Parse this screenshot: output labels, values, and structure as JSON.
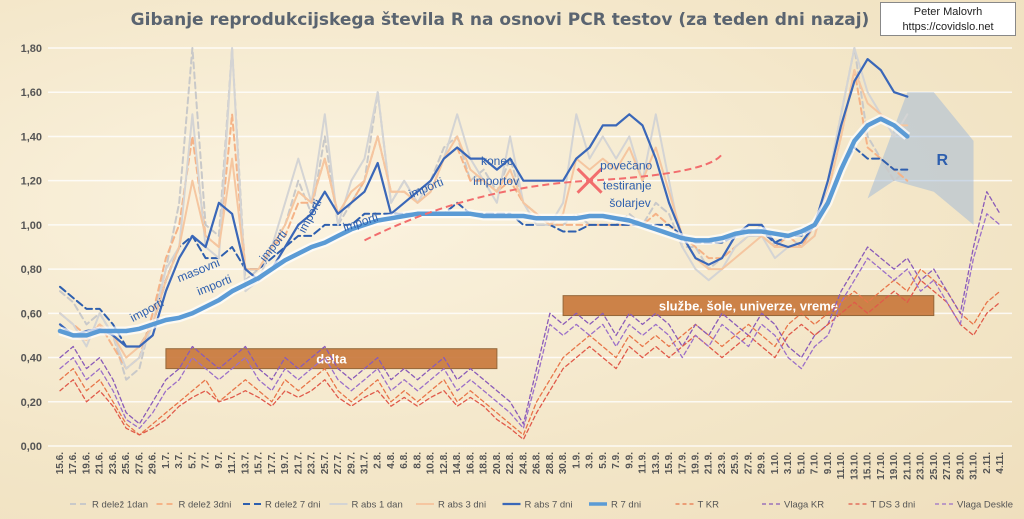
{
  "title": "Gibanje reprodukcijskega števila R na osnovi PCR testov (za teden dni nazaj)",
  "author": {
    "name": "Peter Malovrh",
    "url": "https://covidslo.net"
  },
  "chart_data": {
    "type": "line",
    "ylim": [
      0,
      1.8
    ],
    "yticks": [
      "0,00",
      "0,20",
      "0,40",
      "0,60",
      "0,80",
      "1,00",
      "1,20",
      "1,40",
      "1,60",
      "1,80"
    ],
    "x": [
      "15.6.",
      "17.6.",
      "19.6.",
      "21.6.",
      "23.6.",
      "25.6.",
      "27.6.",
      "29.6.",
      "1.7.",
      "3.7.",
      "5.7.",
      "7.7.",
      "9.7.",
      "11.7.",
      "13.7.",
      "15.7.",
      "17.7.",
      "19.7.",
      "21.7.",
      "23.7.",
      "25.7.",
      "27.7.",
      "29.7.",
      "31.7.",
      "2.8.",
      "4.8.",
      "6.8.",
      "8.8.",
      "10.8.",
      "12.8.",
      "14.8.",
      "16.8.",
      "18.8.",
      "20.8.",
      "22.8.",
      "24.8.",
      "26.8.",
      "28.8.",
      "30.8.",
      "1.9.",
      "3.9.",
      "5.9.",
      "7.9.",
      "9.9.",
      "11.9.",
      "13.9.",
      "15.9.",
      "17.9.",
      "19.9.",
      "21.9.",
      "23.9.",
      "25.9.",
      "27.9.",
      "29.9.",
      "1.10.",
      "3.10.",
      "5.10.",
      "7.10.",
      "9.10.",
      "11.10.",
      "13.10.",
      "15.10.",
      "17.10.",
      "19.10.",
      "21.10.",
      "23.10.",
      "25.10.",
      "27.10.",
      "29.10.",
      "31.10.",
      "2.11.",
      "4.11."
    ],
    "series": [
      {
        "name": "R delež 1dan",
        "color": "#c9c9c9",
        "dash": "6,4",
        "width": 2,
        "values": [
          0.7,
          0.65,
          0.55,
          0.6,
          0.5,
          0.3,
          0.35,
          0.6,
          0.8,
          1.1,
          1.8,
          1.0,
          0.95,
          1.8,
          0.75,
          0.8,
          0.9,
          1.0,
          1.2,
          1.05,
          1.4,
          1.0,
          1.1,
          1.2,
          1.6,
          1.1,
          1.2,
          1.1,
          1.2,
          1.35,
          1.4,
          1.2,
          1.25,
          1.15,
          1.3,
          1.1,
          1.05,
          1.0,
          1.0,
          1.05,
          1.0,
          1.0,
          1.0,
          1.05,
          1.0,
          1.1,
          1.05,
          0.9,
          0.9,
          0.8,
          0.85,
          0.95,
          0.95,
          1.0,
          0.9,
          0.95,
          0.9,
          1.0,
          1.2,
          1.5,
          1.8,
          1.4,
          1.3,
          1.2,
          1.25,
          null,
          null,
          null,
          null,
          null,
          null,
          null
        ]
      },
      {
        "name": "R delež 3dni",
        "color": "#f5b387",
        "dash": "6,4",
        "width": 2,
        "values": [
          0.6,
          0.55,
          0.5,
          0.55,
          0.45,
          0.35,
          0.4,
          0.6,
          0.85,
          1.0,
          1.4,
          0.95,
          0.9,
          1.5,
          0.8,
          0.8,
          0.9,
          0.95,
          1.1,
          1.1,
          1.3,
          1.05,
          1.1,
          1.2,
          1.4,
          1.15,
          1.15,
          1.1,
          1.15,
          1.3,
          1.35,
          1.2,
          1.2,
          1.15,
          1.2,
          1.1,
          1.05,
          1.0,
          1.0,
          1.0,
          1.0,
          1.0,
          1.0,
          1.0,
          1.0,
          1.05,
          1.0,
          0.95,
          0.9,
          0.85,
          0.85,
          0.9,
          0.95,
          0.95,
          0.9,
          0.95,
          0.9,
          1.0,
          1.15,
          1.4,
          1.7,
          1.35,
          1.3,
          1.25,
          1.2,
          null,
          null,
          null,
          null,
          null,
          null,
          null
        ]
      },
      {
        "name": "R delež 7 dni",
        "color": "#2e5fae",
        "dash": "7,4",
        "width": 2,
        "values": [
          0.72,
          0.67,
          0.62,
          0.62,
          0.55,
          0.45,
          0.45,
          0.55,
          0.75,
          0.9,
          0.95,
          0.85,
          0.85,
          0.9,
          0.8,
          0.8,
          0.85,
          0.9,
          0.95,
          0.95,
          1.0,
          1.0,
          1.0,
          1.05,
          1.05,
          1.05,
          1.05,
          1.05,
          1.05,
          1.05,
          1.1,
          1.05,
          1.05,
          1.05,
          1.05,
          1.0,
          1.0,
          1.0,
          0.97,
          0.97,
          1.0,
          1.0,
          1.0,
          1.0,
          1.0,
          1.0,
          1.0,
          0.95,
          0.92,
          0.92,
          0.92,
          0.95,
          0.97,
          0.97,
          0.92,
          0.95,
          0.95,
          1.0,
          1.1,
          1.25,
          1.35,
          1.3,
          1.3,
          1.25,
          1.25,
          null,
          null,
          null,
          null,
          null,
          null,
          null
        ]
      },
      {
        "name": "R abs 1 dan",
        "color": "#d4d4d4",
        "dash": "",
        "width": 2,
        "values": [
          0.6,
          0.55,
          0.45,
          0.6,
          0.5,
          0.35,
          0.4,
          0.55,
          0.8,
          0.9,
          1.5,
          0.9,
          0.85,
          1.8,
          0.7,
          0.75,
          0.9,
          1.1,
          1.3,
          1.1,
          1.5,
          1.0,
          1.2,
          1.3,
          1.6,
          1.1,
          1.2,
          1.1,
          1.2,
          1.3,
          1.5,
          1.3,
          1.2,
          1.1,
          1.4,
          1.1,
          1.0,
          1.0,
          1.1,
          1.5,
          1.3,
          1.4,
          1.3,
          1.4,
          1.2,
          1.5,
          1.2,
          0.9,
          0.8,
          0.75,
          0.8,
          0.9,
          0.95,
          0.95,
          0.85,
          0.9,
          0.9,
          0.95,
          1.2,
          1.5,
          1.8,
          1.6,
          1.5,
          1.4,
          1.5,
          null,
          null,
          null,
          null,
          null,
          null,
          null
        ]
      },
      {
        "name": "R abs 3 dni",
        "color": "#f5c6a0",
        "dash": "",
        "width": 2,
        "values": [
          0.55,
          0.5,
          0.48,
          0.55,
          0.5,
          0.4,
          0.45,
          0.55,
          0.75,
          0.9,
          1.2,
          0.95,
          0.9,
          1.3,
          0.8,
          0.8,
          0.9,
          1.0,
          1.15,
          1.1,
          1.3,
          1.05,
          1.15,
          1.2,
          1.4,
          1.15,
          1.15,
          1.1,
          1.15,
          1.3,
          1.4,
          1.25,
          1.2,
          1.15,
          1.25,
          1.1,
          1.05,
          1.0,
          1.05,
          1.3,
          1.25,
          1.3,
          1.25,
          1.35,
          1.2,
          1.35,
          1.15,
          0.95,
          0.85,
          0.8,
          0.8,
          0.85,
          0.9,
          0.95,
          0.9,
          0.9,
          0.9,
          0.95,
          1.15,
          1.4,
          1.7,
          1.55,
          1.5,
          1.45,
          1.45,
          null,
          null,
          null,
          null,
          null,
          null,
          null
        ]
      },
      {
        "name": "R abs 7 dni",
        "color": "#3a67b8",
        "dash": "",
        "width": 2.2,
        "values": [
          0.55,
          0.5,
          0.52,
          0.53,
          0.5,
          0.45,
          0.45,
          0.5,
          0.7,
          0.85,
          0.95,
          0.9,
          1.1,
          1.05,
          0.8,
          0.75,
          0.8,
          0.9,
          1.0,
          1.05,
          1.15,
          1.05,
          1.1,
          1.15,
          1.28,
          1.05,
          1.1,
          1.15,
          1.2,
          1.3,
          1.35,
          1.3,
          1.3,
          1.25,
          1.3,
          1.2,
          1.2,
          1.2,
          1.2,
          1.3,
          1.35,
          1.45,
          1.45,
          1.5,
          1.45,
          1.3,
          1.1,
          0.95,
          0.85,
          0.82,
          0.85,
          0.95,
          1.0,
          1.0,
          0.92,
          0.9,
          0.92,
          1.0,
          1.2,
          1.45,
          1.65,
          1.75,
          1.7,
          1.6,
          1.58,
          null,
          null,
          null,
          null,
          null,
          null,
          null
        ]
      },
      {
        "name": "R 7 dni",
        "color": "#5b9bd5",
        "dash": "",
        "width": 4.5,
        "values": [
          0.52,
          0.5,
          0.5,
          0.52,
          0.52,
          0.52,
          0.53,
          0.55,
          0.57,
          0.58,
          0.6,
          0.63,
          0.66,
          0.7,
          0.73,
          0.76,
          0.8,
          0.84,
          0.87,
          0.9,
          0.92,
          0.95,
          0.98,
          1.0,
          1.02,
          1.03,
          1.04,
          1.05,
          1.05,
          1.05,
          1.05,
          1.05,
          1.04,
          1.04,
          1.04,
          1.04,
          1.03,
          1.03,
          1.03,
          1.03,
          1.04,
          1.04,
          1.03,
          1.02,
          1.0,
          0.98,
          0.96,
          0.94,
          0.93,
          0.93,
          0.94,
          0.96,
          0.97,
          0.97,
          0.96,
          0.95,
          0.97,
          1.0,
          1.1,
          1.25,
          1.38,
          1.45,
          1.48,
          1.45,
          1.4,
          null,
          null,
          null,
          null,
          null,
          null,
          null
        ]
      },
      {
        "name": "T KR",
        "color": "#e8764a",
        "dash": "4,3",
        "width": 1.3,
        "values": [
          0.3,
          0.35,
          0.25,
          0.3,
          0.2,
          0.1,
          0.05,
          0.1,
          0.15,
          0.2,
          0.25,
          0.3,
          0.2,
          0.25,
          0.3,
          0.25,
          0.2,
          0.3,
          0.25,
          0.3,
          0.35,
          0.25,
          0.2,
          0.25,
          0.3,
          0.2,
          0.25,
          0.2,
          0.25,
          0.3,
          0.2,
          0.25,
          0.2,
          0.15,
          0.1,
          0.05,
          0.2,
          0.3,
          0.4,
          0.45,
          0.5,
          0.45,
          0.4,
          0.5,
          0.45,
          0.5,
          0.45,
          0.5,
          0.55,
          0.5,
          0.45,
          0.5,
          0.55,
          0.5,
          0.45,
          0.55,
          0.6,
          0.55,
          0.6,
          0.65,
          0.7,
          0.65,
          0.7,
          0.75,
          0.7,
          0.8,
          0.75,
          0.7,
          0.6,
          0.55,
          0.65,
          0.7
        ]
      },
      {
        "name": "Vlaga KR",
        "color": "#8a5bb8",
        "dash": "4,3",
        "width": 1.3,
        "values": [
          0.4,
          0.45,
          0.35,
          0.4,
          0.3,
          0.15,
          0.1,
          0.2,
          0.3,
          0.35,
          0.45,
          0.4,
          0.35,
          0.4,
          0.45,
          0.35,
          0.3,
          0.4,
          0.35,
          0.4,
          0.45,
          0.35,
          0.3,
          0.35,
          0.4,
          0.3,
          0.35,
          0.3,
          0.35,
          0.4,
          0.3,
          0.35,
          0.3,
          0.25,
          0.2,
          0.1,
          0.35,
          0.6,
          0.55,
          0.6,
          0.55,
          0.6,
          0.5,
          0.6,
          0.55,
          0.6,
          0.55,
          0.45,
          0.55,
          0.5,
          0.6,
          0.55,
          0.5,
          0.6,
          0.55,
          0.45,
          0.4,
          0.5,
          0.55,
          0.7,
          0.8,
          0.9,
          0.85,
          0.8,
          0.85,
          0.75,
          0.8,
          0.7,
          0.6,
          0.9,
          1.15,
          1.05
        ]
      },
      {
        "name": "T DS 3 dni",
        "color": "#e05a4a",
        "dash": "4,3",
        "width": 1.3,
        "values": [
          0.25,
          0.3,
          0.2,
          0.25,
          0.18,
          0.08,
          0.05,
          0.08,
          0.12,
          0.18,
          0.22,
          0.25,
          0.2,
          0.22,
          0.25,
          0.22,
          0.18,
          0.25,
          0.22,
          0.25,
          0.3,
          0.22,
          0.18,
          0.22,
          0.25,
          0.18,
          0.22,
          0.18,
          0.22,
          0.25,
          0.18,
          0.22,
          0.18,
          0.12,
          0.08,
          0.03,
          0.15,
          0.25,
          0.35,
          0.4,
          0.45,
          0.4,
          0.35,
          0.45,
          0.4,
          0.45,
          0.4,
          0.45,
          0.5,
          0.45,
          0.4,
          0.45,
          0.5,
          0.45,
          0.4,
          0.5,
          0.55,
          0.5,
          0.55,
          0.6,
          0.65,
          0.6,
          0.65,
          0.7,
          0.65,
          0.75,
          0.7,
          0.65,
          0.55,
          0.5,
          0.6,
          0.65
        ]
      },
      {
        "name": "Vlaga Deskle",
        "color": "#9b6fc8",
        "dash": "4,3",
        "width": 1.3,
        "values": [
          0.35,
          0.4,
          0.3,
          0.35,
          0.25,
          0.12,
          0.08,
          0.15,
          0.25,
          0.3,
          0.4,
          0.35,
          0.3,
          0.35,
          0.4,
          0.3,
          0.25,
          0.35,
          0.3,
          0.35,
          0.4,
          0.3,
          0.25,
          0.3,
          0.35,
          0.25,
          0.3,
          0.25,
          0.3,
          0.35,
          0.25,
          0.3,
          0.25,
          0.2,
          0.15,
          0.08,
          0.3,
          0.55,
          0.5,
          0.55,
          0.5,
          0.55,
          0.45,
          0.55,
          0.5,
          0.55,
          0.5,
          0.4,
          0.5,
          0.45,
          0.55,
          0.5,
          0.45,
          0.55,
          0.5,
          0.4,
          0.35,
          0.45,
          0.5,
          0.65,
          0.75,
          0.85,
          0.8,
          0.75,
          0.8,
          0.7,
          0.75,
          0.65,
          0.55,
          0.85,
          1.05,
          1.0
        ]
      }
    ],
    "annotations": [
      {
        "text": "importi",
        "color": "#2e5fae"
      },
      {
        "text": "masovni",
        "color": "#2e5fae"
      },
      {
        "text": "importi",
        "color": "#2e5fae"
      },
      {
        "text": "importi",
        "color": "#2e5fae"
      },
      {
        "text": "importi",
        "color": "#2e5fae"
      },
      {
        "text": "importi",
        "color": "#2e5fae"
      },
      {
        "text": "importi",
        "color": "#2e5fae"
      },
      {
        "text": "konec",
        "color": "#2e5fae"
      },
      {
        "text": "importov",
        "color": "#2e5fae"
      },
      {
        "text": "povečano",
        "color": "#2e5fae"
      },
      {
        "text": "testiranje",
        "color": "#2e5fae"
      },
      {
        "text": "šolarjev",
        "color": "#2e5fae"
      },
      {
        "text": "R",
        "color": "#5b9bd5"
      }
    ],
    "boxes": [
      {
        "text": "delta",
        "color": "#c8773a"
      },
      {
        "text": "službe, šole, univerze, vreme",
        "color": "#c8773a"
      }
    ],
    "legend_position": "bottom"
  }
}
